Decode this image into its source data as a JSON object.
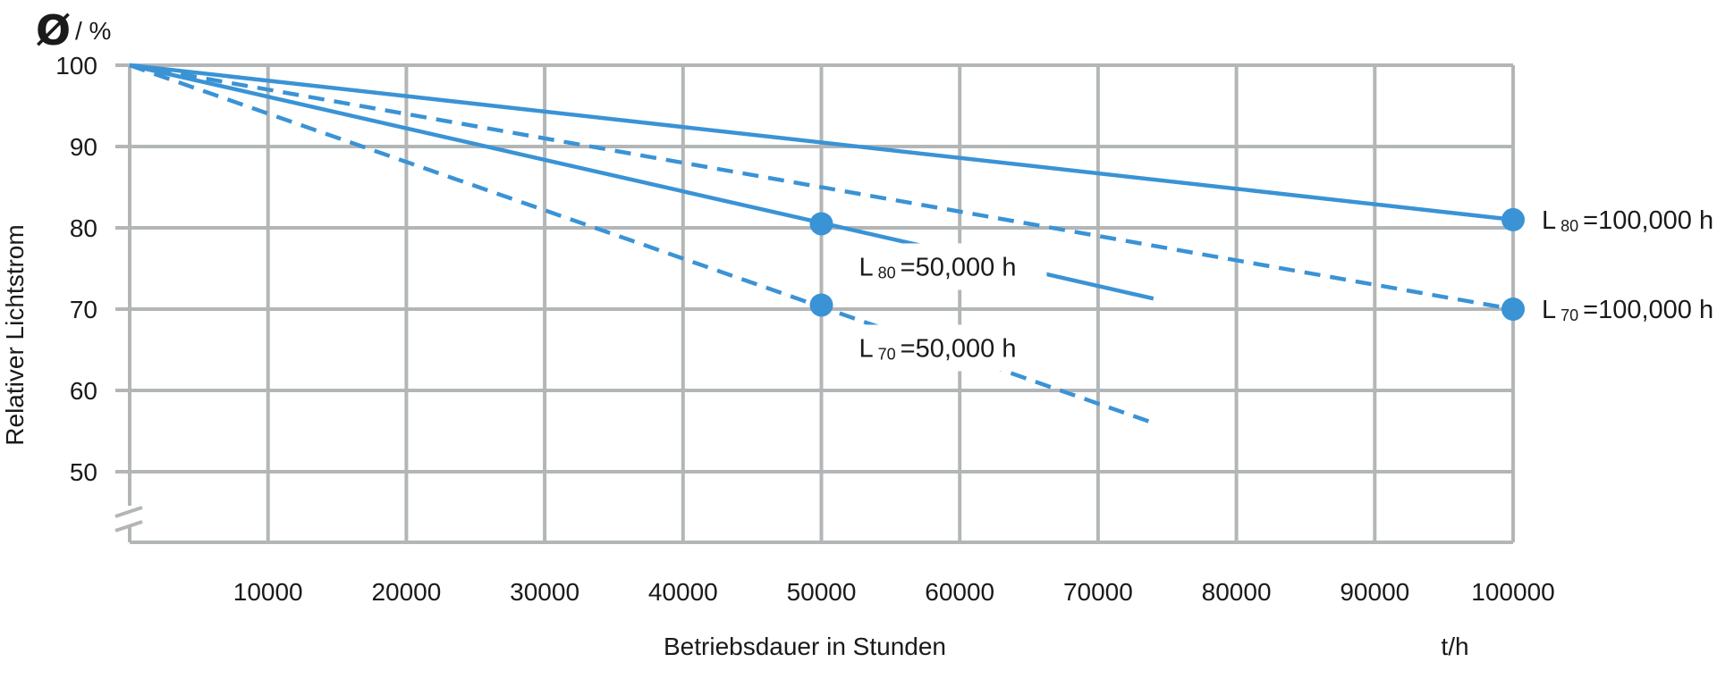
{
  "chart_data": {
    "type": "line",
    "ylabel": "Relativer Lichtstrom",
    "ylabel_unit_symbol": "Ø",
    "ylabel_unit": "/ %",
    "xlabel": "Betriebsdauer in Stunden",
    "xlabel_unit": "t/h",
    "xlim": [
      0,
      100000
    ],
    "ylim": [
      50,
      100
    ],
    "axis_break": true,
    "grid": true,
    "x_ticks": [
      "10000",
      "20000",
      "30000",
      "40000",
      "50000",
      "60000",
      "70000",
      "80000",
      "90000",
      "100000"
    ],
    "y_ticks": [
      "100",
      "90",
      "80",
      "70",
      "60",
      "50"
    ],
    "series": [
      {
        "style": "solid",
        "color": "#3a93d5",
        "x": [
          0,
          100000
        ],
        "y": [
          100,
          81
        ]
      },
      {
        "style": "dashed",
        "color": "#3a93d5",
        "x": [
          0,
          100000
        ],
        "y": [
          100,
          70
        ]
      },
      {
        "style": "solid",
        "color": "#3a93d5",
        "x": [
          0,
          74000
        ],
        "y": [
          100,
          71.3
        ]
      },
      {
        "style": "dashed",
        "color": "#3a93d5",
        "x": [
          0,
          74000
        ],
        "y": [
          100,
          56
        ]
      }
    ],
    "markers": [
      {
        "x": 100000,
        "y": 81,
        "L": "L",
        "sub": "80",
        "text": "=100,000 h"
      },
      {
        "x": 100000,
        "y": 70,
        "L": "L",
        "sub": "70",
        "text": "=100,000 h"
      },
      {
        "x": 50000,
        "y": 80.5,
        "L": "L",
        "sub": "80",
        "text": "=50,000 h"
      },
      {
        "x": 50000,
        "y": 70.5,
        "L": "L",
        "sub": "70",
        "text": "=50,000 h"
      }
    ]
  }
}
